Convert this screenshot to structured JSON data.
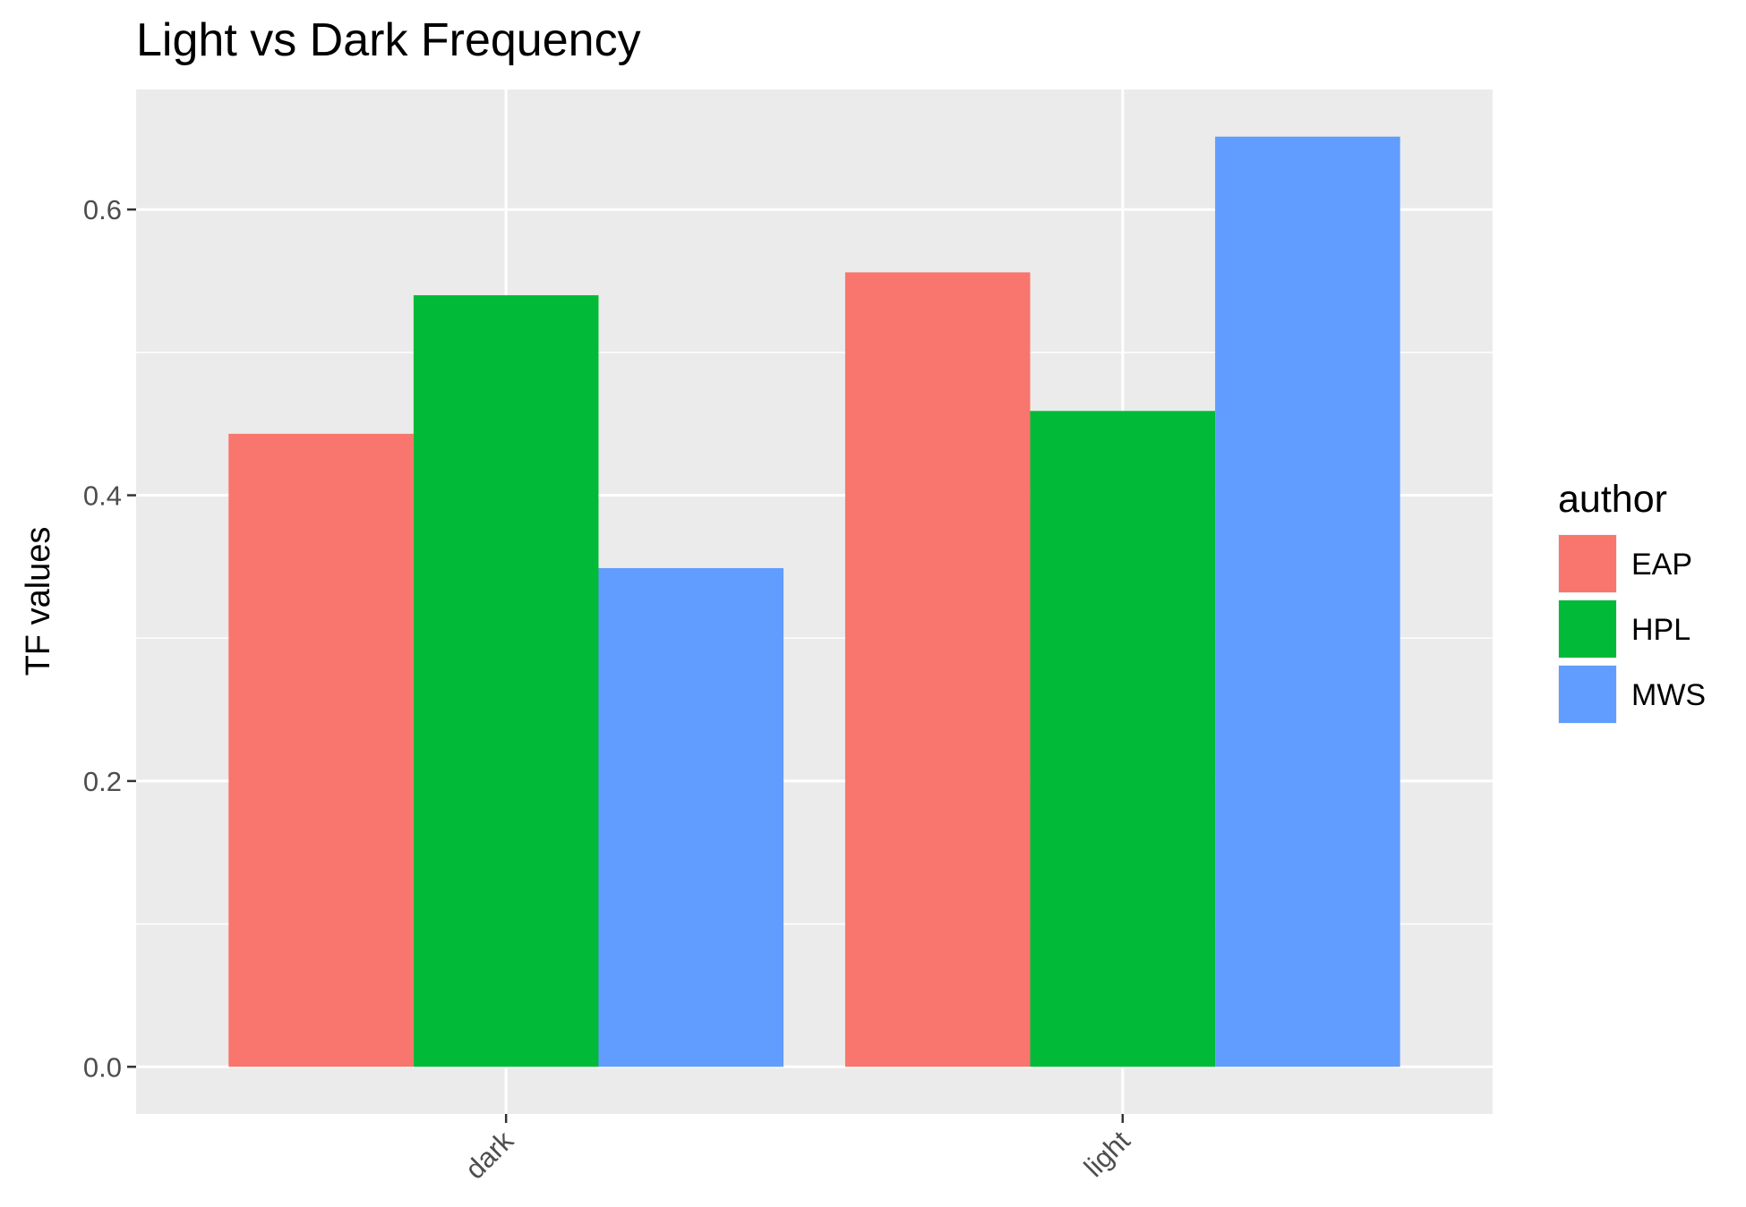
{
  "chart_data": {
    "type": "bar",
    "title": "Light vs Dark Frequency",
    "xlabel": "",
    "ylabel": "TF values",
    "categories": [
      "dark",
      "light"
    ],
    "series": [
      {
        "name": "EAP",
        "values": [
          0.443,
          0.556
        ],
        "color": "#F8766D"
      },
      {
        "name": "HPL",
        "values": [
          0.54,
          0.459
        ],
        "color": "#00BA38"
      },
      {
        "name": "MWS",
        "values": [
          0.349,
          0.651
        ],
        "color": "#619CFF"
      }
    ],
    "ylim": [
      -0.033,
      0.684
    ],
    "yticks": [
      0.0,
      0.2,
      0.4,
      0.6
    ],
    "ytick_labels": [
      "0.0",
      "0.2",
      "0.4",
      "0.6"
    ],
    "grid": true,
    "legend": {
      "title": "author",
      "position": "right"
    },
    "background": "#EBEBEB"
  }
}
